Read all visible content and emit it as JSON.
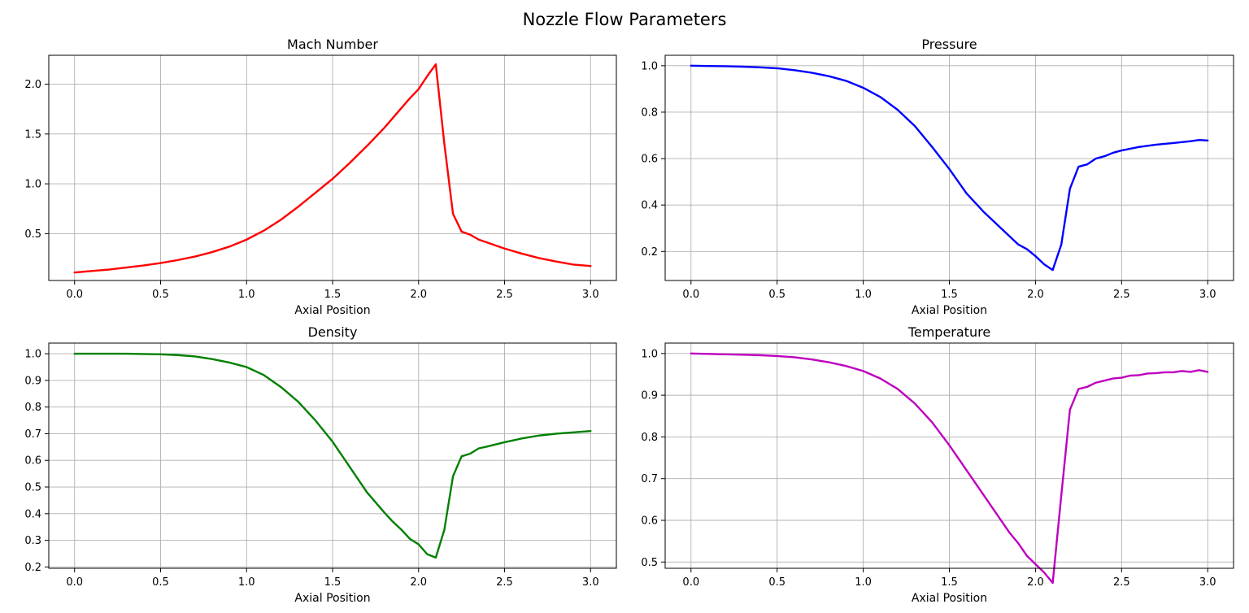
{
  "figure_title": "Nozzle Flow Parameters",
  "colors": {
    "mach": "#ff0000",
    "pressure": "#0000ff",
    "density": "#008000",
    "temperature": "#bf00bf",
    "grid": "#b0b0b0"
  },
  "chart_data": [
    {
      "type": "line",
      "title": "Mach Number",
      "xlabel": "Axial Position",
      "ylabel": "",
      "xlim": [
        -0.15,
        3.15
      ],
      "ylim": [
        0.03,
        2.29
      ],
      "xticks": [
        0.0,
        0.5,
        1.0,
        1.5,
        2.0,
        2.5,
        3.0
      ],
      "xtick_labels": [
        "0.0",
        "0.5",
        "1.0",
        "1.5",
        "2.0",
        "2.5",
        "3.0"
      ],
      "yticks": [
        0.5,
        1.0,
        1.5,
        2.0
      ],
      "ytick_labels": [
        "0.5",
        "1.0",
        "1.5",
        "2.0"
      ],
      "grid": true,
      "color": "#ff0000",
      "x": [
        0.0,
        0.1,
        0.2,
        0.3,
        0.4,
        0.5,
        0.6,
        0.7,
        0.8,
        0.9,
        1.0,
        1.1,
        1.2,
        1.3,
        1.4,
        1.5,
        1.6,
        1.7,
        1.8,
        1.85,
        1.9,
        1.95,
        2.0,
        2.05,
        2.1,
        2.15,
        2.2,
        2.25,
        2.3,
        2.35,
        2.4,
        2.5,
        2.6,
        2.7,
        2.8,
        2.9,
        3.0
      ],
      "y": [
        0.11,
        0.125,
        0.14,
        0.16,
        0.18,
        0.205,
        0.235,
        0.27,
        0.315,
        0.37,
        0.44,
        0.53,
        0.64,
        0.77,
        0.91,
        1.05,
        1.21,
        1.38,
        1.56,
        1.66,
        1.76,
        1.86,
        1.95,
        2.08,
        2.2,
        1.4,
        0.7,
        0.52,
        0.49,
        0.44,
        0.41,
        0.35,
        0.3,
        0.255,
        0.22,
        0.19,
        0.175
      ]
    },
    {
      "type": "line",
      "title": "Pressure",
      "xlabel": "Axial Position",
      "ylabel": "",
      "xlim": [
        -0.15,
        3.15
      ],
      "ylim": [
        0.075,
        1.045
      ],
      "xticks": [
        0.0,
        0.5,
        1.0,
        1.5,
        2.0,
        2.5,
        3.0
      ],
      "xtick_labels": [
        "0.0",
        "0.5",
        "1.0",
        "1.5",
        "2.0",
        "2.5",
        "3.0"
      ],
      "yticks": [
        0.2,
        0.4,
        0.6,
        0.8,
        1.0
      ],
      "ytick_labels": [
        "0.2",
        "0.4",
        "0.6",
        "0.8",
        "1.0"
      ],
      "grid": true,
      "color": "#0000ff",
      "x": [
        0.0,
        0.1,
        0.2,
        0.3,
        0.4,
        0.5,
        0.6,
        0.7,
        0.8,
        0.9,
        1.0,
        1.1,
        1.2,
        1.3,
        1.4,
        1.5,
        1.6,
        1.7,
        1.8,
        1.85,
        1.9,
        1.95,
        2.0,
        2.05,
        2.1,
        2.15,
        2.2,
        2.25,
        2.3,
        2.35,
        2.4,
        2.45,
        2.5,
        2.6,
        2.7,
        2.8,
        2.9,
        2.95,
        3.0
      ],
      "y": [
        1.0,
        0.999,
        0.998,
        0.996,
        0.993,
        0.989,
        0.981,
        0.97,
        0.955,
        0.935,
        0.905,
        0.865,
        0.81,
        0.74,
        0.65,
        0.555,
        0.45,
        0.37,
        0.3,
        0.265,
        0.23,
        0.21,
        0.18,
        0.145,
        0.12,
        0.23,
        0.47,
        0.565,
        0.575,
        0.6,
        0.61,
        0.625,
        0.635,
        0.65,
        0.66,
        0.667,
        0.675,
        0.68,
        0.678
      ]
    },
    {
      "type": "line",
      "title": "Density",
      "xlabel": "Axial Position",
      "ylabel": "",
      "xlim": [
        -0.15,
        3.15
      ],
      "ylim": [
        0.195,
        1.04
      ],
      "xticks": [
        0.0,
        0.5,
        1.0,
        1.5,
        2.0,
        2.5,
        3.0
      ],
      "xtick_labels": [
        "0.0",
        "0.5",
        "1.0",
        "1.5",
        "2.0",
        "2.5",
        "3.0"
      ],
      "yticks": [
        0.2,
        0.3,
        0.4,
        0.5,
        0.6,
        0.7,
        0.8,
        0.9,
        1.0
      ],
      "ytick_labels": [
        "0.2",
        "0.3",
        "0.4",
        "0.5",
        "0.6",
        "0.7",
        "0.8",
        "0.9",
        "1.0"
      ],
      "grid": true,
      "color": "#008000",
      "x": [
        0.0,
        0.1,
        0.2,
        0.3,
        0.4,
        0.5,
        0.6,
        0.7,
        0.8,
        0.9,
        1.0,
        1.1,
        1.2,
        1.3,
        1.4,
        1.5,
        1.6,
        1.7,
        1.8,
        1.85,
        1.9,
        1.95,
        2.0,
        2.05,
        2.1,
        2.15,
        2.2,
        2.25,
        2.3,
        2.35,
        2.4,
        2.5,
        2.6,
        2.7,
        2.8,
        2.9,
        3.0
      ],
      "y": [
        1.0,
        1.0,
        1.0,
        1.0,
        0.999,
        0.998,
        0.995,
        0.99,
        0.98,
        0.967,
        0.95,
        0.92,
        0.875,
        0.82,
        0.75,
        0.67,
        0.575,
        0.48,
        0.405,
        0.37,
        0.34,
        0.305,
        0.285,
        0.248,
        0.235,
        0.34,
        0.54,
        0.615,
        0.625,
        0.645,
        0.652,
        0.668,
        0.682,
        0.693,
        0.7,
        0.705,
        0.71
      ]
    },
    {
      "type": "line",
      "title": "Temperature",
      "xlabel": "Axial Position",
      "ylabel": "",
      "xlim": [
        -0.15,
        3.15
      ],
      "ylim": [
        0.485,
        1.025
      ],
      "xticks": [
        0.0,
        0.5,
        1.0,
        1.5,
        2.0,
        2.5,
        3.0
      ],
      "xtick_labels": [
        "0.0",
        "0.5",
        "1.0",
        "1.5",
        "2.0",
        "2.5",
        "3.0"
      ],
      "yticks": [
        0.5,
        0.6,
        0.7,
        0.8,
        0.9,
        1.0
      ],
      "ytick_labels": [
        "0.5",
        "0.6",
        "0.7",
        "0.8",
        "0.9",
        "1.0"
      ],
      "grid": true,
      "color": "#bf00bf",
      "x": [
        0.0,
        0.1,
        0.2,
        0.3,
        0.4,
        0.5,
        0.6,
        0.7,
        0.8,
        0.9,
        1.0,
        1.1,
        1.2,
        1.3,
        1.4,
        1.5,
        1.6,
        1.7,
        1.8,
        1.85,
        1.9,
        1.95,
        2.0,
        2.05,
        2.1,
        2.15,
        2.2,
        2.25,
        2.3,
        2.35,
        2.4,
        2.45,
        2.5,
        2.55,
        2.6,
        2.65,
        2.7,
        2.75,
        2.8,
        2.85,
        2.9,
        2.95,
        3.0
      ],
      "y": [
        1.0,
        0.999,
        0.998,
        0.997,
        0.996,
        0.994,
        0.991,
        0.986,
        0.979,
        0.97,
        0.958,
        0.94,
        0.915,
        0.88,
        0.835,
        0.78,
        0.72,
        0.66,
        0.6,
        0.57,
        0.545,
        0.515,
        0.495,
        0.475,
        0.45,
        0.66,
        0.865,
        0.915,
        0.92,
        0.93,
        0.935,
        0.94,
        0.942,
        0.947,
        0.948,
        0.952,
        0.953,
        0.955,
        0.955,
        0.958,
        0.956,
        0.96,
        0.956
      ]
    }
  ]
}
